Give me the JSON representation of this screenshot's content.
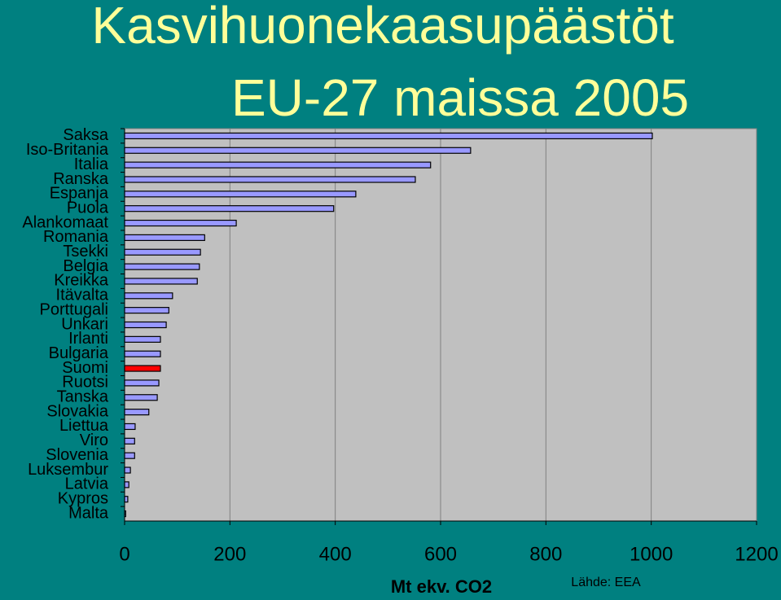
{
  "chart_data": {
    "type": "barh",
    "title": [
      "Kasvihuonekaasupäästöt",
      "EU-27 maissa 2005"
    ],
    "categories": [
      "Saksa",
      "Iso-Britania",
      "Italia",
      "Ranska",
      "Espanja",
      "Puola",
      "Alankomaat",
      "Romania",
      "Tsekki",
      "Belgia",
      "Kreikka",
      "Itävalta",
      "Porttugali",
      "Unkari",
      "Irlanti",
      "Bulgaria",
      "Suomi",
      "Ruotsi",
      "Tanska",
      "Slovakia",
      "Liettua",
      "Viro",
      "Slovenia",
      "Luksembur",
      "Latvia",
      "Kypros",
      "Malta"
    ],
    "values": [
      1002,
      657,
      581,
      552,
      439,
      397,
      212,
      152,
      144,
      142,
      138,
      91,
      84,
      79,
      68,
      68,
      68,
      65,
      62,
      46,
      20,
      19,
      19,
      11,
      8,
      6,
      2
    ],
    "colors": [
      "#9999ff",
      "#9999ff",
      "#9999ff",
      "#9999ff",
      "#9999ff",
      "#9999ff",
      "#9999ff",
      "#9999ff",
      "#9999ff",
      "#9999ff",
      "#9999ff",
      "#9999ff",
      "#9999ff",
      "#9999ff",
      "#9999ff",
      "#9999ff",
      "#ff0000",
      "#9999ff",
      "#9999ff",
      "#9999ff",
      "#9999ff",
      "#9999ff",
      "#9999ff",
      "#9999ff",
      "#9999ff",
      "#9999ff",
      "#9999ff"
    ],
    "xlim": [
      0,
      1200
    ],
    "xticks": [
      0,
      200,
      400,
      600,
      800,
      1000,
      1200
    ],
    "grid": true,
    "xlabel": "Mt ekv. CO2",
    "source": "Lähde: EEA"
  }
}
